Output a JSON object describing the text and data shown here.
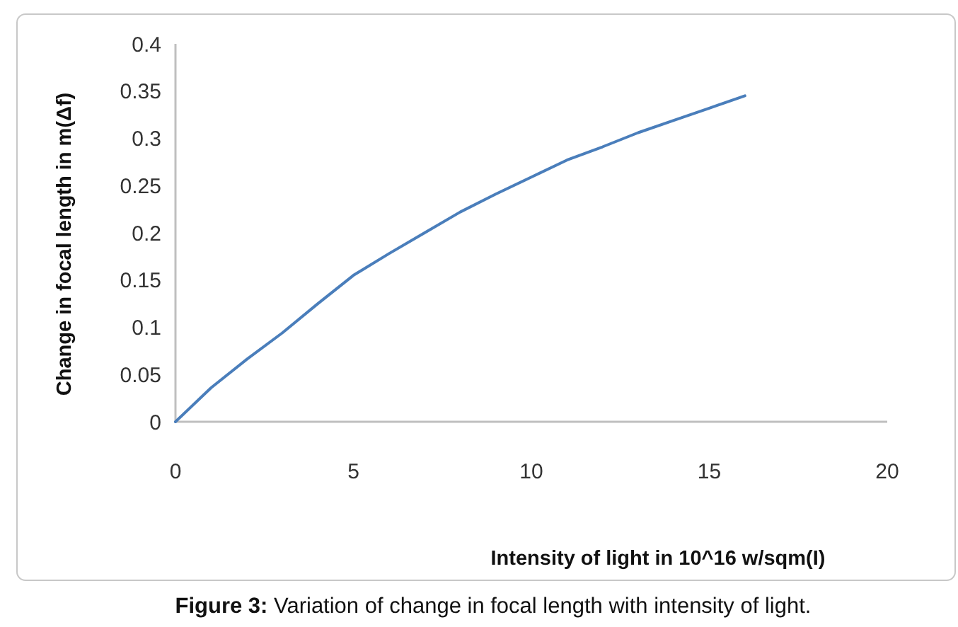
{
  "chart_data": {
    "type": "line",
    "xlabel": "Intensity of light in 10^16 w/sqm(I)",
    "ylabel": "Change in focal length in m(Δf)",
    "x": [
      0,
      1,
      2,
      3,
      4,
      5,
      6,
      7,
      8,
      9,
      10,
      11,
      12,
      13,
      14,
      15,
      16
    ],
    "series": [
      {
        "color": "#4a7ebb",
        "values": [
          0,
          0.036,
          0.066,
          0.094,
          0.125,
          0.155,
          0.178,
          0.2,
          0.222,
          0.241,
          0.259,
          0.277,
          0.291,
          0.306,
          0.319,
          0.332,
          0.345
        ]
      }
    ],
    "xlim": [
      0,
      20
    ],
    "xticks": [
      0,
      5,
      10,
      15,
      20
    ],
    "ylim": [
      0,
      0.4
    ],
    "yticks": [
      0,
      0.05,
      0.1,
      0.15,
      0.2,
      0.25,
      0.3,
      0.35,
      0.4
    ],
    "grid": false,
    "marker": "none",
    "line_style": "solid",
    "annotations": [
      "Figure 3: Variation of change in focal length with intensity of light."
    ]
  }
}
